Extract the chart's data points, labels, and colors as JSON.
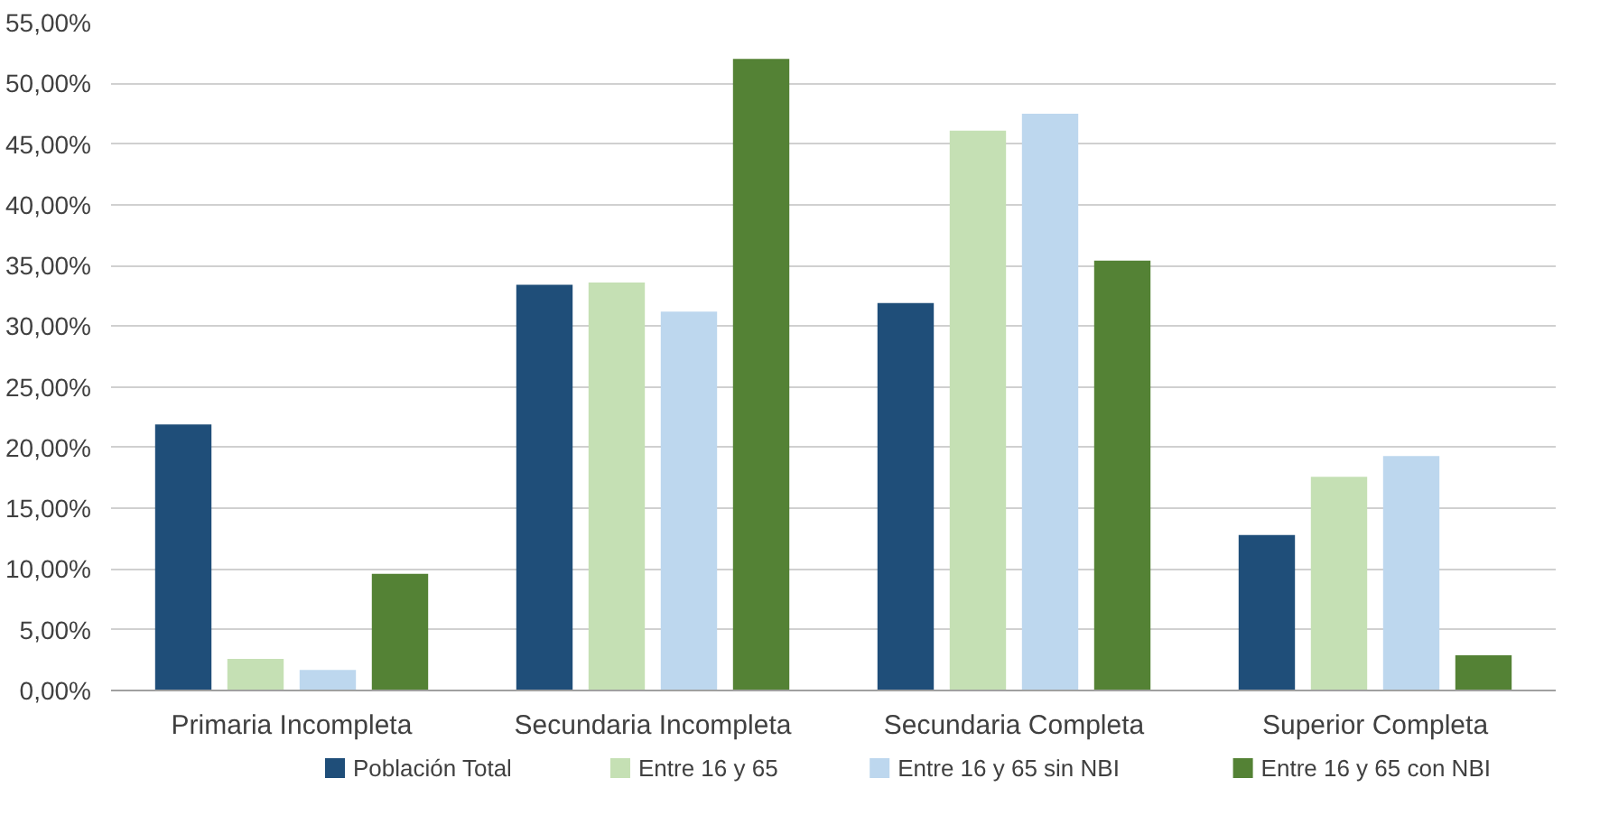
{
  "chart_data": {
    "type": "bar",
    "categories": [
      "Primaria Incompleta",
      "Secundaria Incompleta",
      "Secundaria Completa",
      "Superior Completa"
    ],
    "series": [
      {
        "name": "Población Total",
        "color": "#1f4e79",
        "values": [
          21.9,
          33.4,
          31.9,
          12.8
        ]
      },
      {
        "name": "Entre 16 y 65",
        "color": "#c5e0b4",
        "values": [
          2.6,
          33.6,
          46.1,
          17.6
        ]
      },
      {
        "name": "Entre 16 y 65 sin NBI",
        "color": "#bdd7ee",
        "values": [
          1.7,
          31.2,
          47.5,
          19.3
        ]
      },
      {
        "name": "Entre 16 y 65 con NBI",
        "color": "#548235",
        "values": [
          9.6,
          52.0,
          35.4,
          2.9
        ]
      }
    ],
    "ylim": [
      0,
      55
    ],
    "yticks": [
      {
        "value": 0,
        "label": "0,00%"
      },
      {
        "value": 5,
        "label": "5,00%"
      },
      {
        "value": 10,
        "label": "10,00%"
      },
      {
        "value": 15,
        "label": "15,00%"
      },
      {
        "value": 20,
        "label": "20,00%"
      },
      {
        "value": 25,
        "label": "25,00%"
      },
      {
        "value": 30,
        "label": "30,00%"
      },
      {
        "value": 35,
        "label": "35,00%"
      },
      {
        "value": 40,
        "label": "40,00%"
      },
      {
        "value": 45,
        "label": "45,00%"
      },
      {
        "value": 50,
        "label": "50,00%"
      },
      {
        "value": 55,
        "label": "55,00%"
      }
    ],
    "grid": "y",
    "legend": "bottom"
  }
}
